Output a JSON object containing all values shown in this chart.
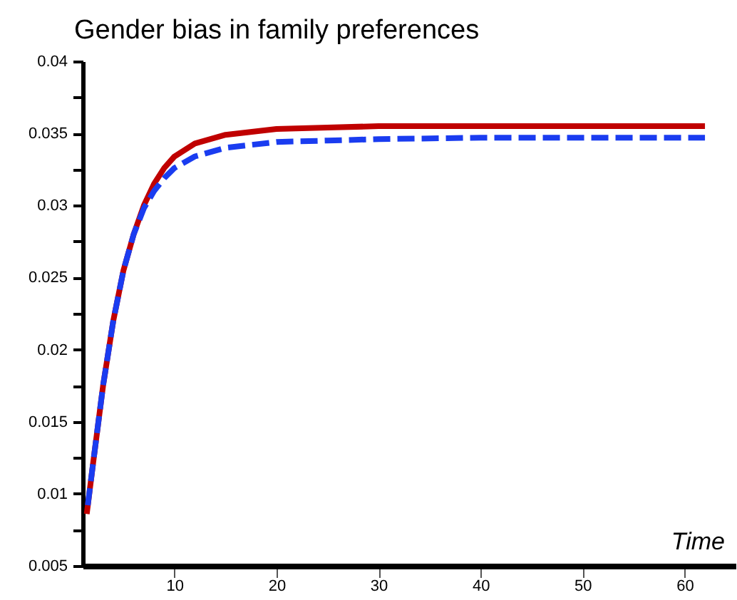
{
  "chart_data": {
    "type": "line",
    "title": "Gender bias in family preferences",
    "xlabel": "Time",
    "xlim": [
      1,
      65
    ],
    "xticks": [
      10,
      20,
      30,
      40,
      50,
      60
    ],
    "ylim": [
      0.005,
      0.04
    ],
    "yticks": [
      {
        "value": 0.005,
        "label": "0.005"
      },
      {
        "value": 0.0075,
        "label": null
      },
      {
        "value": 0.01,
        "label": "0.01"
      },
      {
        "value": 0.0125,
        "label": null
      },
      {
        "value": 0.015,
        "label": "0.015"
      },
      {
        "value": 0.0175,
        "label": null
      },
      {
        "value": 0.02,
        "label": "0.02"
      },
      {
        "value": 0.0225,
        "label": null
      },
      {
        "value": 0.025,
        "label": "0.025"
      },
      {
        "value": 0.0275,
        "label": null
      },
      {
        "value": 0.03,
        "label": "0.03"
      },
      {
        "value": 0.0325,
        "label": null
      },
      {
        "value": 0.035,
        "label": "0.035"
      },
      {
        "value": 0.0375,
        "label": null
      },
      {
        "value": 0.04,
        "label": "0.04"
      }
    ],
    "grid": false,
    "legend": false,
    "marker": "none",
    "series": [
      {
        "color": "#c00000",
        "line_style": "solid",
        "x": [
          1.4,
          2,
          3,
          4,
          5,
          6,
          7,
          8,
          9,
          10,
          12,
          15,
          20,
          25,
          30,
          40,
          50,
          62
        ],
        "values": [
          0.0086,
          0.012,
          0.0175,
          0.022,
          0.0255,
          0.028,
          0.03,
          0.0315,
          0.0326,
          0.0334,
          0.0343,
          0.0349,
          0.0353,
          0.0354,
          0.0355,
          0.0355,
          0.0355,
          0.0355
        ]
      },
      {
        "color": "#1a3cf0",
        "line_style": "dashed",
        "x": [
          1.5,
          2,
          3,
          4,
          5,
          6,
          7,
          8,
          9,
          10,
          12,
          15,
          20,
          25,
          30,
          40,
          50,
          62
        ],
        "values": [
          0.0092,
          0.012,
          0.0175,
          0.022,
          0.0255,
          0.028,
          0.0298,
          0.031,
          0.0319,
          0.0326,
          0.0334,
          0.034,
          0.0344,
          0.0345,
          0.0346,
          0.0347,
          0.0347,
          0.0347
        ]
      }
    ]
  }
}
